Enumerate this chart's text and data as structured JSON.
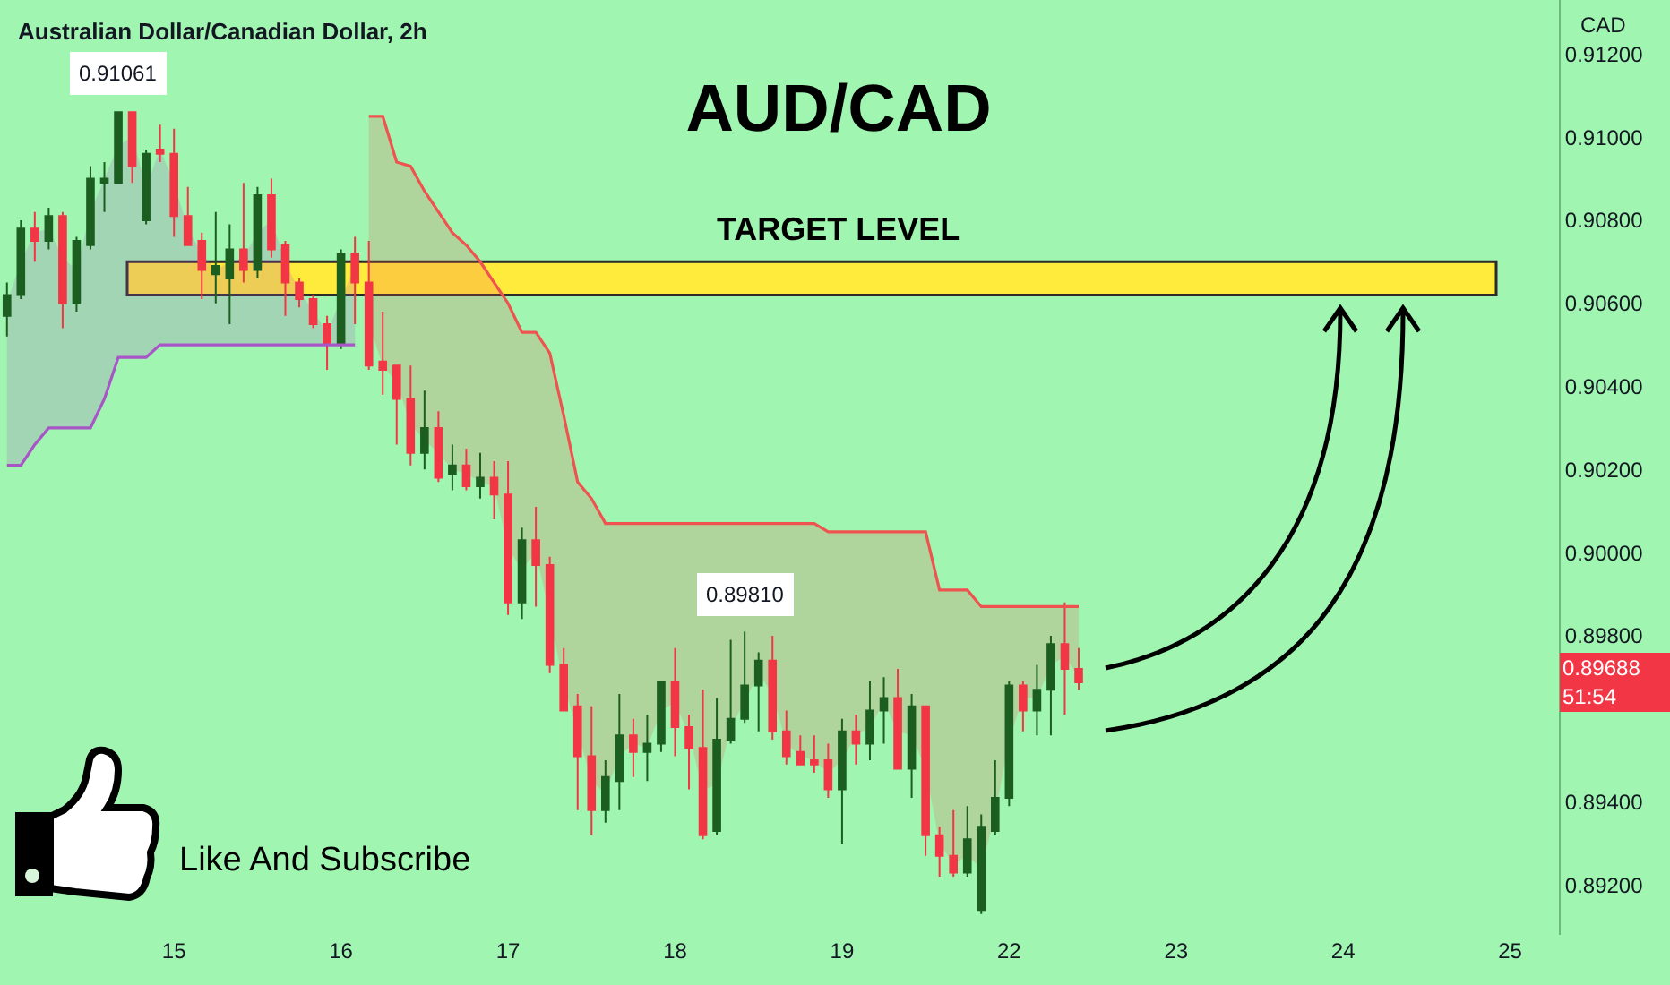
{
  "chart_data": {
    "type": "candlestick",
    "title": "AUD/CAD",
    "subtitle": "Australian Dollar/Canadian Dollar, 2h",
    "ylabel": "CAD",
    "categories": [
      null,
      null,
      null,
      null,
      null,
      null,
      null,
      null,
      null,
      null,
      null,
      null,
      "15",
      null,
      null,
      null,
      null,
      null,
      null,
      null,
      null,
      null,
      null,
      null,
      "16",
      null,
      null,
      null,
      null,
      null,
      null,
      null,
      null,
      null,
      null,
      null,
      "17",
      null,
      null,
      null,
      null,
      null,
      null,
      null,
      null,
      null,
      null,
      null,
      "18",
      null,
      null,
      null,
      null,
      null,
      null,
      null,
      null,
      null,
      null,
      null,
      "19",
      null,
      null,
      null,
      null,
      null,
      null,
      null,
      null,
      null,
      null,
      null,
      "22",
      null,
      null,
      null,
      null,
      null,
      null,
      null,
      null,
      null,
      null,
      null,
      "23",
      null,
      null,
      null,
      null,
      null,
      null,
      null,
      null,
      null,
      null,
      null,
      "24",
      null,
      null,
      null,
      null,
      null,
      null,
      null,
      null,
      null,
      null,
      null,
      "25",
      null,
      null,
      null
    ],
    "ohlc": [
      [
        0.9057,
        0.9065,
        0.9052,
        0.9062
      ],
      [
        0.9062,
        0.908,
        0.9061,
        0.9078
      ],
      [
        0.9078,
        0.9082,
        0.907,
        0.9075
      ],
      [
        0.9075,
        0.9083,
        0.9073,
        0.9081
      ],
      [
        0.9081,
        0.9082,
        0.9054,
        0.906
      ],
      [
        0.906,
        0.9076,
        0.9058,
        0.9075
      ],
      [
        0.9074,
        0.9093,
        0.9073,
        0.909
      ],
      [
        0.9089,
        0.9094,
        0.9082,
        0.909
      ],
      [
        0.9089,
        0.91061,
        0.9089,
        0.9106
      ],
      [
        0.9106,
        0.9106,
        0.9089,
        0.9093
      ],
      [
        0.908,
        0.9097,
        0.9079,
        0.9096
      ],
      [
        0.9097,
        0.9103,
        0.9094,
        0.9096
      ],
      [
        0.9096,
        0.9102,
        0.9076,
        0.9081
      ],
      [
        0.9081,
        0.9088,
        0.9074,
        0.9074
      ],
      [
        0.9075,
        0.9077,
        0.9061,
        0.9068
      ],
      [
        0.9067,
        0.9082,
        0.906,
        0.9069
      ],
      [
        0.9066,
        0.9079,
        0.9055,
        0.9073
      ],
      [
        0.9073,
        0.9089,
        0.9065,
        0.9068
      ],
      [
        0.9068,
        0.9088,
        0.9066,
        0.9086
      ],
      [
        0.9086,
        0.909,
        0.9071,
        0.9073
      ],
      [
        0.9074,
        0.9075,
        0.9057,
        0.9065
      ],
      [
        0.9065,
        0.9066,
        0.9059,
        0.9061
      ],
      [
        0.9061,
        0.9062,
        0.9054,
        0.9055
      ],
      [
        0.9055,
        0.9057,
        0.9044,
        0.905
      ],
      [
        0.905,
        0.9073,
        0.9049,
        0.9072
      ],
      [
        0.9072,
        0.9076,
        0.9055,
        0.9065
      ],
      [
        0.9065,
        0.9075,
        0.9044,
        0.9045
      ],
      [
        0.9046,
        0.9058,
        0.9038,
        0.9044
      ],
      [
        0.9045,
        0.9045,
        0.9026,
        0.9037
      ],
      [
        0.9037,
        0.9045,
        0.9021,
        0.9024
      ],
      [
        0.9024,
        0.9039,
        0.902,
        0.903
      ],
      [
        0.903,
        0.9034,
        0.9017,
        0.9018
      ],
      [
        0.9019,
        0.9026,
        0.9015,
        0.9021
      ],
      [
        0.9021,
        0.9025,
        0.9015,
        0.9016
      ],
      [
        0.9016,
        0.9024,
        0.9013,
        0.9018
      ],
      [
        0.9018,
        0.9022,
        0.9008,
        0.9014
      ],
      [
        0.9014,
        0.9022,
        0.8985,
        0.8988
      ],
      [
        0.8988,
        0.9006,
        0.8984,
        0.9003
      ],
      [
        0.9003,
        0.9011,
        0.8987,
        0.8997
      ],
      [
        0.8997,
        0.8999,
        0.8971,
        0.8973
      ],
      [
        0.8973,
        0.8977,
        0.8962,
        0.8962
      ],
      [
        0.8963,
        0.8966,
        0.8938,
        0.8951
      ],
      [
        0.8951,
        0.8963,
        0.8932,
        0.8938
      ],
      [
        0.8938,
        0.895,
        0.8935,
        0.8946
      ],
      [
        0.8945,
        0.8966,
        0.8938,
        0.8956
      ],
      [
        0.8956,
        0.896,
        0.8946,
        0.8952
      ],
      [
        0.8952,
        0.8961,
        0.8945,
        0.8954
      ],
      [
        0.8954,
        0.8969,
        0.8952,
        0.8969
      ],
      [
        0.8969,
        0.8977,
        0.8951,
        0.8958
      ],
      [
        0.8958,
        0.8961,
        0.8943,
        0.8953
      ],
      [
        0.8953,
        0.8967,
        0.8931,
        0.8932
      ],
      [
        0.8933,
        0.8965,
        0.8932,
        0.8955
      ],
      [
        0.8955,
        0.8979,
        0.8954,
        0.896
      ],
      [
        0.896,
        0.8981,
        0.8959,
        0.8968
      ],
      [
        0.8968,
        0.8976,
        0.8957,
        0.8974
      ],
      [
        0.8974,
        0.898,
        0.8955,
        0.8957
      ],
      [
        0.8957,
        0.8962,
        0.8949,
        0.8951
      ],
      [
        0.8952,
        0.8956,
        0.8949,
        0.8949
      ],
      [
        0.895,
        0.8956,
        0.8947,
        0.8949
      ],
      [
        0.895,
        0.8954,
        0.8941,
        0.8943
      ],
      [
        0.8943,
        0.896,
        0.893,
        0.8957
      ],
      [
        0.8957,
        0.8961,
        0.8949,
        0.8954
      ],
      [
        0.8954,
        0.8969,
        0.895,
        0.8962
      ],
      [
        0.8962,
        0.897,
        0.8954,
        0.8965
      ],
      [
        0.8965,
        0.8972,
        0.8948,
        0.8948
      ],
      [
        0.8948,
        0.8966,
        0.8941,
        0.8963
      ],
      [
        0.8963,
        0.8963,
        0.8927,
        0.8932
      ],
      [
        0.8932,
        0.8934,
        0.8922,
        0.8927
      ],
      [
        0.8927,
        0.8938,
        0.8922,
        0.8923
      ],
      [
        0.8923,
        0.8939,
        0.8922,
        0.8931
      ],
      [
        0.8914,
        0.8937,
        0.8913,
        0.8934
      ],
      [
        0.8933,
        0.895,
        0.8932,
        0.8941
      ],
      [
        0.8941,
        0.8969,
        0.8939,
        0.8968
      ],
      [
        0.8968,
        0.8969,
        0.8957,
        0.8962
      ],
      [
        0.8962,
        0.8973,
        0.8956,
        0.8967
      ],
      [
        0.8967,
        0.898,
        0.8956,
        0.8978
      ],
      [
        0.8978,
        0.8988,
        0.8961,
        0.8972
      ],
      [
        0.8972,
        0.8977,
        0.8967,
        0.89688
      ],
      null,
      null,
      null,
      null,
      null,
      null,
      null,
      null,
      null,
      null,
      null,
      null,
      null,
      null,
      null,
      null,
      null,
      null,
      null,
      null,
      null,
      null,
      null,
      null,
      null,
      null,
      null,
      null,
      null,
      null,
      null,
      null,
      null,
      null
    ],
    "colors": [
      "#1b5e20",
      "#1b5e20",
      "#f23645",
      "#1b5e20",
      "#f23645",
      "#1b5e20",
      "#1b5e20",
      "#1b5e20",
      "#1b5e20",
      "#f23645",
      "#1b5e20",
      "#f23645",
      "#f23645",
      "#f23645",
      "#f23645",
      "#1b5e20",
      "#1b5e20",
      "#f23645",
      "#1b5e20",
      "#f23645",
      "#f23645",
      "#f23645",
      "#f23645",
      "#f23645",
      "#1b5e20",
      "#f23645",
      "#f23645",
      "#f23645",
      "#f23645",
      "#f23645",
      "#1b5e20",
      "#f23645",
      "#1b5e20",
      "#f23645",
      "#1b5e20",
      "#f23645",
      "#f23645",
      "#1b5e20",
      "#f23645",
      "#f23645",
      "#f23645",
      "#f23645",
      "#f23645",
      "#1b5e20",
      "#1b5e20",
      "#f23645",
      "#1b5e20",
      "#1b5e20",
      "#f23645",
      "#f23645",
      "#f23645",
      "#1b5e20",
      "#1b5e20",
      "#1b5e20",
      "#1b5e20",
      "#f23645",
      "#f23645",
      "#f23645",
      "#f23645",
      "#f23645",
      "#1b5e20",
      "#f23645",
      "#1b5e20",
      "#1b5e20",
      "#f23645",
      "#1b5e20",
      "#f23645",
      "#f23645",
      "#f23645",
      "#1b5e20",
      "#1b5e20",
      "#1b5e20",
      "#1b5e20",
      "#f23645",
      "#1b5e20",
      "#1b5e20",
      "#f23645",
      "#f23645",
      null,
      null,
      null,
      null,
      null,
      null,
      null,
      null,
      null,
      null,
      null,
      null,
      null,
      null,
      null,
      null,
      null,
      null,
      null,
      null,
      null,
      null,
      null,
      null,
      null,
      null,
      null,
      null,
      null,
      null,
      null,
      null,
      null,
      null
    ],
    "series": [
      {
        "type": "line",
        "color": "#ef5350",
        "values": [
          null,
          null,
          null,
          null,
          null,
          null,
          null,
          null,
          null,
          null,
          null,
          null,
          null,
          null,
          null,
          null,
          null,
          null,
          null,
          null,
          null,
          null,
          null,
          null,
          null,
          null,
          0.9105,
          0.9105,
          0.9094,
          0.9093,
          0.9087,
          0.9082,
          0.9077,
          0.9074,
          0.907,
          0.9065,
          0.906,
          0.9053,
          0.9053,
          0.9048,
          0.9033,
          0.9017,
          0.9013,
          0.9007,
          0.9007,
          0.9007,
          0.9007,
          0.9007,
          0.9007,
          0.9007,
          0.9007,
          0.9007,
          0.9007,
          0.9007,
          0.9007,
          0.9007,
          0.9007,
          0.9007,
          0.9007,
          0.9005,
          0.9005,
          0.9005,
          0.9005,
          0.9005,
          0.9005,
          0.9005,
          0.9005,
          0.8991,
          0.8991,
          0.8991,
          0.8987,
          0.8987,
          0.8987,
          0.8987,
          0.8987,
          0.8987,
          0.8987,
          0.8987,
          null,
          null,
          null,
          null,
          null,
          null,
          null,
          null,
          null,
          null,
          null,
          null,
          null,
          null,
          null,
          null,
          null,
          null,
          null,
          null,
          null,
          null,
          null,
          null,
          null,
          null,
          null,
          null,
          null,
          null,
          null,
          null,
          null,
          null
        ],
        "lower": [
          null,
          null,
          null,
          null,
          null,
          null,
          null,
          null,
          null,
          null,
          null,
          null,
          null,
          null,
          null,
          null,
          null,
          null,
          null,
          null,
          null,
          null,
          null,
          null,
          null,
          null,
          0.9055,
          0.9045,
          0.9041,
          0.9031,
          0.9027,
          0.9024,
          0.902,
          0.9019,
          0.9017,
          0.9016,
          0.9001,
          0.8996,
          0.9,
          0.8985,
          0.8968,
          0.8957,
          0.8945,
          0.8942,
          0.8951,
          0.8954,
          0.8953,
          0.8962,
          0.8964,
          0.8956,
          0.8943,
          0.8944,
          0.8958,
          0.8964,
          0.8971,
          0.8966,
          0.8954,
          0.8951,
          0.895,
          0.8947,
          0.895,
          0.8956,
          0.8958,
          0.8964,
          0.8957,
          0.8956,
          0.8948,
          0.893,
          0.8925,
          0.8927,
          0.8924,
          0.8937,
          0.8955,
          0.8965,
          0.8965,
          0.8973,
          0.8975,
          0.897,
          null,
          null,
          null,
          null,
          null,
          null,
          null,
          null,
          null,
          null,
          null,
          null,
          null,
          null,
          null,
          null,
          null,
          null,
          null,
          null,
          null,
          null,
          null,
          null,
          null,
          null,
          null,
          null,
          null,
          null,
          null,
          null,
          null,
          null
        ],
        "upper": [
          null,
          null,
          null,
          null,
          null,
          null,
          null,
          null,
          null,
          null,
          null,
          null,
          null,
          null,
          null,
          null,
          null,
          null,
          null,
          null,
          null,
          null,
          null,
          null,
          null,
          null,
          0.9105,
          0.9105,
          0.9094,
          0.9093,
          0.9087,
          0.9082,
          0.9077,
          0.9074,
          0.907,
          0.9065,
          0.906,
          0.9053,
          0.9053,
          0.9048,
          0.9033,
          0.9017,
          0.9013,
          0.9007,
          0.9007,
          0.9007,
          0.9007,
          0.9007,
          0.9007,
          0.9007,
          0.9007,
          0.9007,
          0.9007,
          0.9007,
          0.9007,
          0.9007,
          0.9007,
          0.9007,
          0.9007,
          0.9005,
          0.9005,
          0.9005,
          0.9005,
          0.9005,
          0.9005,
          0.9005,
          0.9005,
          0.8991,
          0.8991,
          0.8991,
          0.8987,
          0.8987,
          0.8987,
          0.8987,
          0.8987,
          0.8987,
          0.8987,
          0.8987,
          null,
          null,
          null,
          null,
          null,
          null,
          null,
          null,
          null,
          null,
          null,
          null,
          null,
          null,
          null,
          null,
          null,
          null,
          null,
          null,
          null,
          null,
          null,
          null,
          null,
          null,
          null,
          null,
          null,
          null,
          null,
          null,
          null,
          null
        ]
      },
      {
        "type": "line",
        "color": "#a855c8",
        "values": [
          0.9021,
          0.9021,
          0.9026,
          0.903,
          0.903,
          0.903,
          0.903,
          0.9037,
          0.9047,
          0.9047,
          0.9047,
          0.905,
          0.905,
          0.905,
          0.905,
          0.905,
          0.905,
          0.905,
          0.905,
          0.905,
          0.905,
          0.905,
          0.905,
          0.905,
          0.905,
          0.905,
          null,
          null,
          null,
          null,
          null,
          null,
          null,
          null,
          null,
          null,
          null,
          null,
          null,
          null,
          null,
          null,
          null,
          null,
          null,
          null,
          null,
          null,
          null,
          null,
          null,
          null,
          null,
          null,
          null,
          null,
          null,
          null,
          null,
          null,
          null,
          null,
          null,
          null,
          null,
          null,
          null,
          null,
          null,
          null,
          null,
          null,
          null,
          null,
          null,
          null,
          null,
          null,
          null,
          null,
          null,
          null,
          null,
          null,
          null,
          null,
          null,
          null,
          null,
          null,
          null,
          null,
          null,
          null,
          null,
          null,
          null,
          null,
          null,
          null,
          null,
          null,
          null,
          null,
          null,
          null,
          null,
          null,
          null,
          null,
          null,
          null
        ],
        "lower": [
          0.9021,
          0.9021,
          0.9026,
          0.903,
          0.903,
          0.903,
          0.903,
          0.9037,
          0.9047,
          0.9047,
          0.9047,
          0.905,
          0.905,
          0.905,
          0.905,
          0.905,
          0.905,
          0.905,
          0.905,
          0.905,
          0.905,
          0.905,
          0.905,
          0.905,
          0.905,
          0.905,
          null,
          null,
          null,
          null,
          null,
          null,
          null,
          null,
          null,
          null,
          null,
          null,
          null,
          null,
          null,
          null,
          null,
          null,
          null,
          null,
          null,
          null,
          null,
          null,
          null,
          null,
          null,
          null,
          null,
          null,
          null,
          null,
          null,
          null,
          null,
          null,
          null,
          null,
          null,
          null,
          null,
          null,
          null,
          null,
          null,
          null,
          null,
          null,
          null,
          null,
          null,
          null,
          null,
          null,
          null,
          null,
          null,
          null,
          null,
          null,
          null,
          null,
          null,
          null,
          null,
          null,
          null,
          null,
          null,
          null,
          null,
          null,
          null,
          null,
          null,
          null,
          null,
          null,
          null,
          null,
          null,
          null,
          null,
          null,
          null,
          null
        ],
        "upper": [
          0.906,
          0.907,
          0.9077,
          0.9078,
          0.9071,
          0.9068,
          0.9082,
          0.909,
          0.9098,
          0.91,
          0.9088,
          0.9097,
          0.9089,
          0.9078,
          0.9072,
          0.9068,
          0.907,
          0.9071,
          0.9077,
          0.908,
          0.907,
          0.9063,
          0.9058,
          0.9053,
          0.9061,
          0.9069,
          null,
          null,
          null,
          null,
          null,
          null,
          null,
          null,
          null,
          null,
          null,
          null,
          null,
          null,
          null,
          null,
          null,
          null,
          null,
          null,
          null,
          null,
          null,
          null,
          null,
          null,
          null,
          null,
          null,
          null,
          null,
          null,
          null,
          null,
          null,
          null,
          null,
          null,
          null,
          null,
          null,
          null,
          null,
          null,
          null,
          null,
          null,
          null,
          null,
          null,
          null,
          null,
          null,
          null,
          null,
          null,
          null,
          null,
          null,
          null,
          null,
          null,
          null,
          null,
          null,
          null,
          null,
          null,
          null,
          null,
          null,
          null,
          null,
          null,
          null,
          null,
          null,
          null,
          null,
          null,
          null,
          null,
          null,
          null,
          null,
          null
        ]
      }
    ],
    "ylim": [
      0.8908,
      0.9133
    ],
    "yticks": [
      {
        "value": 0.892,
        "label": "0.89200"
      },
      {
        "value": 0.894,
        "label": "0.89400"
      },
      {
        "value": 0.898,
        "label": "0.89800"
      },
      {
        "value": 0.9,
        "label": "0.90000"
      },
      {
        "value": 0.902,
        "label": "0.90200"
      },
      {
        "value": 0.904,
        "label": "0.90400"
      },
      {
        "value": 0.906,
        "label": "0.90600"
      },
      {
        "value": 0.908,
        "label": "0.90800"
      },
      {
        "value": 0.91,
        "label": "0.91000"
      },
      {
        "value": 0.912,
        "label": "0.91200"
      }
    ],
    "bands": [
      {
        "axis": "y",
        "from": 0.9062,
        "to": 0.907,
        "label": "TARGET LEVEL",
        "color": "#ffeb3b"
      }
    ],
    "annotations": [
      {
        "text": "0.91061",
        "y": 0.91061
      },
      {
        "text": "0.89810",
        "y": 0.8981
      },
      "0.89688",
      "51:54",
      "Like And Subscribe"
    ]
  }
}
